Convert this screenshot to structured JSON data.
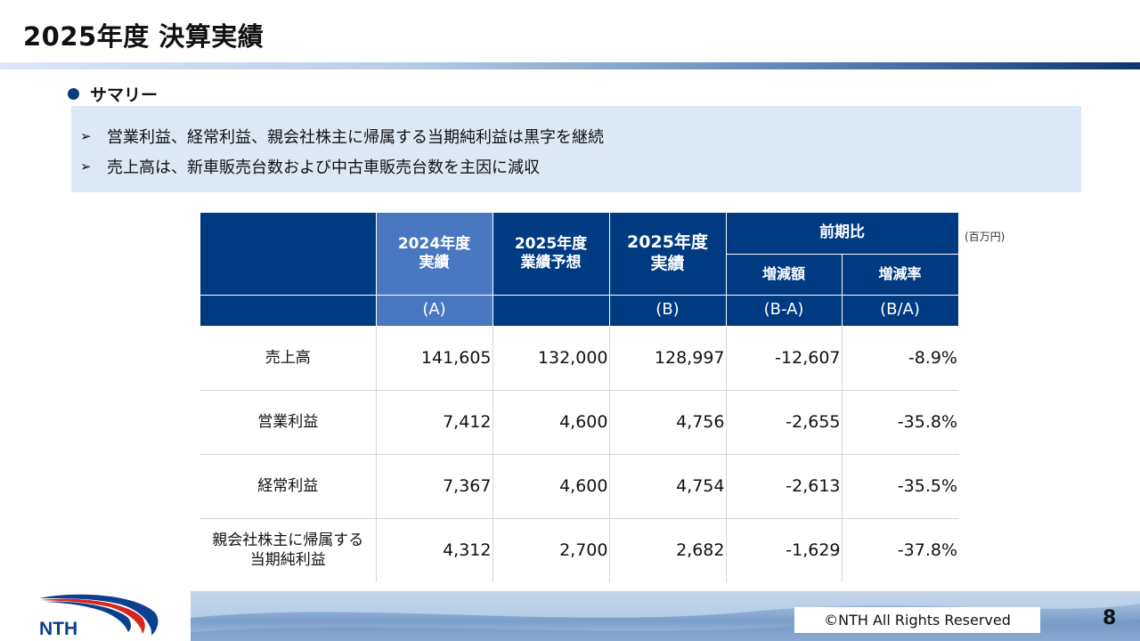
{
  "slide": {
    "title": "2025年度 決算実績",
    "section_label": "サマリー",
    "summary": [
      "営業利益、経常利益、親会社株主に帰属する当期純利益は黒字を継続",
      "売上高は、新車販売台数および中古車販売台数を主因に減収"
    ],
    "summary_marker": "➢",
    "unit": "(百万円)"
  },
  "table": {
    "headers": {
      "fy2024_line1": "2024年度",
      "fy2024_line2": "実績",
      "forecast_line1": "2025年度",
      "forecast_line2": "業績予想",
      "fy2025_line1": "2025年度",
      "fy2025_line2": "実績",
      "yoy": "前期比",
      "change": "増減額",
      "change_rate": "増減率",
      "code_a": "(A)",
      "code_b": "(B)",
      "code_ba_diff": "(B-A)",
      "code_ba_ratio": "(B/A)"
    },
    "rows": [
      {
        "label": "売上高",
        "label2": "",
        "a": "141,605",
        "forecast": "132,000",
        "b": "128,997",
        "diff": "-12,607",
        "rate": "-8.9%"
      },
      {
        "label": "営業利益",
        "label2": "",
        "a": "7,412",
        "forecast": "4,600",
        "b": "4,756",
        "diff": "-2,655",
        "rate": "-35.8%"
      },
      {
        "label": "経常利益",
        "label2": "",
        "a": "7,367",
        "forecast": "4,600",
        "b": "4,754",
        "diff": "-2,613",
        "rate": "-35.5%"
      },
      {
        "label": "親会社株主に帰属する",
        "label2": "当期純利益",
        "a": "4,312",
        "forecast": "2,700",
        "b": "2,682",
        "diff": "-1,629",
        "rate": "-37.8%"
      }
    ]
  },
  "footer": {
    "logo_text": "NTH",
    "copyright": "©NTH All Rights Reserved",
    "page_number": "8"
  },
  "colors": {
    "header_navy": "#003b82",
    "header_highlight": "#4a78c0",
    "summary_bg": "#dde8f5",
    "logo_blue": "#0d3f8f",
    "logo_red": "#d9261c"
  },
  "icons": {
    "section_bullet": "filled-circle",
    "summary_marker": "arrowhead-right"
  }
}
